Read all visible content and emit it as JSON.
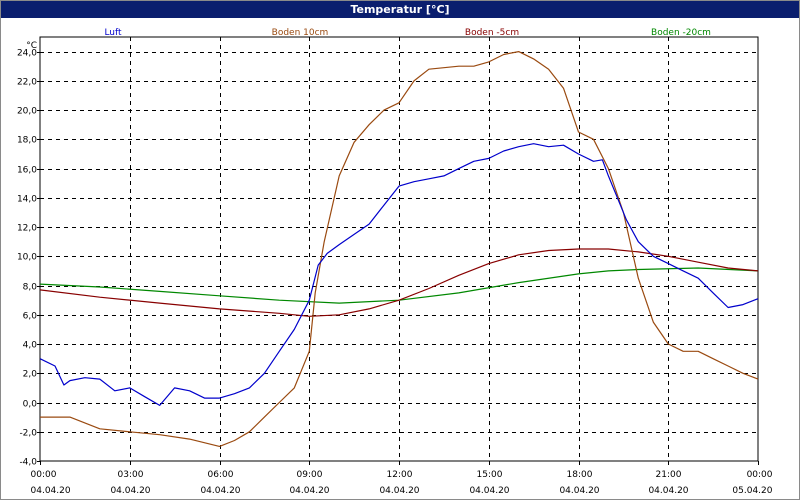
{
  "window": {
    "title": "Temperatur [°C]"
  },
  "chart_data": {
    "type": "line",
    "title": "Temperatur [°C]",
    "ylabel": "°C",
    "ylim": [
      -4,
      25
    ],
    "yticks": [
      -4,
      -2,
      0,
      2,
      4,
      6,
      8,
      10,
      12,
      14,
      16,
      18,
      20,
      22,
      24
    ],
    "ytick_labels": [
      "-4,0",
      "-2,0",
      "0,0",
      "2,0",
      "4,0",
      "6,0",
      "8,0",
      "10,0",
      "12,0",
      "14,0",
      "16,0",
      "18,0",
      "20,0",
      "22,0",
      "24,0"
    ],
    "xlim": [
      0,
      24
    ],
    "xticks": [
      0,
      3,
      6,
      9,
      12,
      15,
      18,
      21,
      24
    ],
    "xtick_times": [
      "00:00",
      "03:00",
      "06:00",
      "09:00",
      "12:00",
      "15:00",
      "18:00",
      "21:00",
      "00:00"
    ],
    "xtick_dates": [
      "04.04.20",
      "04.04.20",
      "04.04.20",
      "04.04.20",
      "04.04.20",
      "04.04.20",
      "04.04.20",
      "04.04.20",
      "05.04.20"
    ],
    "grid": true,
    "series": [
      {
        "name": "Luft",
        "color": "#0000cc",
        "x": [
          0,
          0.5,
          0.8,
          1,
          1.5,
          2,
          2.5,
          3,
          3.5,
          4,
          4.5,
          5,
          5.5,
          6,
          6.5,
          7,
          7.5,
          8,
          8.5,
          9,
          9.3,
          9.6,
          10,
          10.5,
          11,
          11.5,
          12,
          12.5,
          13,
          13.5,
          14,
          14.5,
          15,
          15.5,
          16,
          16.5,
          17,
          17.5,
          18,
          18.5,
          18.8,
          19,
          19.3,
          19.6,
          20,
          20.5,
          21,
          21.5,
          22,
          22.5,
          23,
          23.5,
          24
        ],
        "values": [
          3.0,
          2.5,
          1.2,
          1.5,
          1.7,
          1.6,
          0.8,
          1.0,
          0.4,
          -0.2,
          1.0,
          0.8,
          0.3,
          0.3,
          0.6,
          1.0,
          2.0,
          3.5,
          5.0,
          7.0,
          9.4,
          10.2,
          10.8,
          11.5,
          12.2,
          13.5,
          14.8,
          15.1,
          15.3,
          15.5,
          16.0,
          16.5,
          16.7,
          17.2,
          17.5,
          17.7,
          17.5,
          17.6,
          17.0,
          16.5,
          16.6,
          15.5,
          14.0,
          12.5,
          11.0,
          10.0,
          9.5,
          9.0,
          8.5,
          7.5,
          6.5,
          6.7,
          7.1
        ]
      },
      {
        "name": "Boden 10cm",
        "color": "#9a4a10",
        "x": [
          0,
          1,
          2,
          3,
          4,
          5,
          6,
          6.5,
          7,
          7.5,
          8,
          8.5,
          9,
          9.2,
          9.5,
          10,
          10.5,
          11,
          11.5,
          12,
          12.5,
          13,
          13.5,
          14,
          14.5,
          15,
          15.5,
          16,
          16.5,
          17,
          17.5,
          18,
          18.5,
          19,
          19.5,
          20,
          20.5,
          21,
          21.5,
          22,
          22.5,
          23,
          23.5,
          24
        ],
        "values": [
          -1.0,
          -1.0,
          -1.8,
          -2.0,
          -2.2,
          -2.5,
          -3.0,
          -2.6,
          -2.0,
          -1.0,
          0.0,
          1.0,
          3.5,
          7.5,
          11.0,
          15.5,
          17.8,
          19.0,
          20.0,
          20.5,
          22.0,
          22.8,
          22.9,
          23.0,
          23.0,
          23.3,
          23.8,
          24.0,
          23.5,
          22.8,
          21.5,
          18.5,
          18.0,
          16.0,
          13.0,
          8.5,
          5.5,
          4.0,
          3.5,
          3.5,
          3.0,
          2.5,
          2.0,
          1.6
        ]
      },
      {
        "name": "Boden -5cm",
        "color": "#880000",
        "x": [
          0,
          2,
          4,
          6,
          8,
          9,
          10,
          11,
          12,
          13,
          14,
          15,
          16,
          17,
          18,
          19,
          20,
          21,
          22,
          23,
          24
        ],
        "values": [
          7.7,
          7.2,
          6.8,
          6.4,
          6.1,
          5.9,
          6.0,
          6.4,
          7.0,
          7.8,
          8.7,
          9.5,
          10.1,
          10.4,
          10.5,
          10.5,
          10.3,
          10.0,
          9.6,
          9.2,
          9.0
        ]
      },
      {
        "name": "Boden -20cm",
        "color": "#008800",
        "x": [
          0,
          2,
          4,
          6,
          8,
          10,
          12,
          14,
          16,
          18,
          19,
          20,
          22,
          24
        ],
        "values": [
          8.1,
          7.9,
          7.6,
          7.3,
          7.0,
          6.8,
          7.0,
          7.5,
          8.2,
          8.8,
          9.0,
          9.1,
          9.2,
          9.0
        ]
      }
    ]
  }
}
